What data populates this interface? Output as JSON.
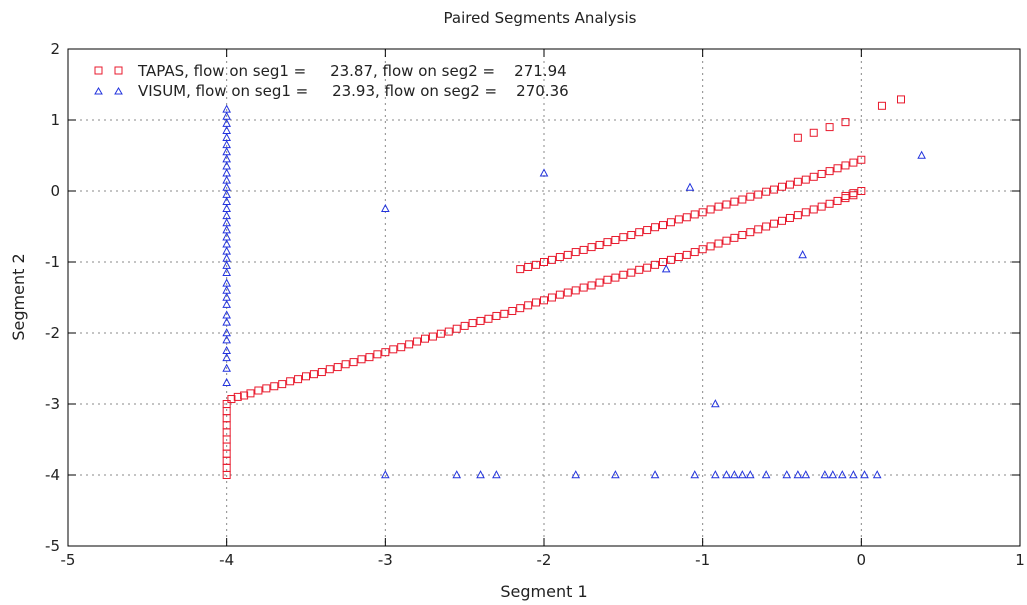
{
  "chart_data": {
    "type": "scatter",
    "title": "Paired Segments Analysis",
    "xlabel": "Segment 1",
    "ylabel": "Segment 2",
    "xlim": [
      -5,
      1
    ],
    "ylim": [
      -5,
      2
    ],
    "x_ticks": [
      -5,
      -4,
      -3,
      -2,
      -1,
      0,
      1
    ],
    "y_ticks": [
      -5,
      -4,
      -3,
      -2,
      -1,
      0,
      1,
      2
    ],
    "grid": true,
    "legend_position": "top-left",
    "series": [
      {
        "name": "TAPAS, flow on seg1 =     23.87, flow on seg2 =    271.94",
        "marker": "square",
        "color": "#e8192c",
        "points": [
          [
            -4,
            -4.0
          ],
          [
            -4,
            -3.9
          ],
          [
            -4,
            -3.8
          ],
          [
            -4,
            -3.7
          ],
          [
            -4,
            -3.6
          ],
          [
            -4,
            -3.5
          ],
          [
            -4,
            -3.4
          ],
          [
            -4,
            -3.3
          ],
          [
            -4,
            -3.2
          ],
          [
            -4,
            -3.1
          ],
          [
            -4,
            -3.0
          ],
          [
            -3.97,
            -2.93
          ],
          [
            -3.93,
            -2.9
          ],
          [
            -3.89,
            -2.88
          ],
          [
            -3.85,
            -2.85
          ],
          [
            -3.8,
            -2.81
          ],
          [
            -3.75,
            -2.78
          ],
          [
            -3.7,
            -2.75
          ],
          [
            -3.65,
            -2.72
          ],
          [
            -3.6,
            -2.68
          ],
          [
            -3.55,
            -2.65
          ],
          [
            -3.5,
            -2.61
          ],
          [
            -3.45,
            -2.58
          ],
          [
            -3.4,
            -2.55
          ],
          [
            -3.35,
            -2.51
          ],
          [
            -3.3,
            -2.48
          ],
          [
            -3.25,
            -2.44
          ],
          [
            -3.2,
            -2.41
          ],
          [
            -3.15,
            -2.37
          ],
          [
            -3.1,
            -2.34
          ],
          [
            -3.05,
            -2.3
          ],
          [
            -3.0,
            -2.27
          ],
          [
            -2.95,
            -2.23
          ],
          [
            -2.9,
            -2.2
          ],
          [
            -2.85,
            -2.16
          ],
          [
            -2.8,
            -2.12
          ],
          [
            -2.75,
            -2.08
          ],
          [
            -2.7,
            -2.05
          ],
          [
            -2.65,
            -2.01
          ],
          [
            -2.6,
            -1.98
          ],
          [
            -2.55,
            -1.94
          ],
          [
            -2.5,
            -1.9
          ],
          [
            -2.45,
            -1.86
          ],
          [
            -2.4,
            -1.83
          ],
          [
            -2.35,
            -1.8
          ],
          [
            -2.3,
            -1.76
          ],
          [
            -2.25,
            -1.73
          ],
          [
            -2.2,
            -1.69
          ],
          [
            -2.15,
            -1.65
          ],
          [
            -2.1,
            -1.61
          ],
          [
            -2.05,
            -1.57
          ],
          [
            -2.0,
            -1.54
          ],
          [
            -1.95,
            -1.5
          ],
          [
            -1.9,
            -1.46
          ],
          [
            -1.85,
            -1.43
          ],
          [
            -1.8,
            -1.4
          ],
          [
            -1.75,
            -1.36
          ],
          [
            -1.7,
            -1.33
          ],
          [
            -1.65,
            -1.29
          ],
          [
            -1.6,
            -1.25
          ],
          [
            -1.55,
            -1.22
          ],
          [
            -1.5,
            -1.18
          ],
          [
            -1.45,
            -1.15
          ],
          [
            -1.4,
            -1.11
          ],
          [
            -1.35,
            -1.08
          ],
          [
            -1.3,
            -1.04
          ],
          [
            -1.25,
            -1.0
          ],
          [
            -1.2,
            -0.97
          ],
          [
            -1.15,
            -0.93
          ],
          [
            -1.1,
            -0.9
          ],
          [
            -1.05,
            -0.86
          ],
          [
            -1.0,
            -0.82
          ],
          [
            -0.95,
            -0.78
          ],
          [
            -0.9,
            -0.74
          ],
          [
            -0.85,
            -0.7
          ],
          [
            -0.8,
            -0.66
          ],
          [
            -0.75,
            -0.62
          ],
          [
            -0.7,
            -0.58
          ],
          [
            -0.65,
            -0.54
          ],
          [
            -0.6,
            -0.5
          ],
          [
            -0.55,
            -0.46
          ],
          [
            -0.5,
            -0.42
          ],
          [
            -0.45,
            -0.38
          ],
          [
            -0.4,
            -0.34
          ],
          [
            -0.35,
            -0.3
          ],
          [
            -0.3,
            -0.26
          ],
          [
            -0.25,
            -0.22
          ],
          [
            -0.2,
            -0.18
          ],
          [
            -0.15,
            -0.14
          ],
          [
            -0.1,
            -0.1
          ],
          [
            -0.05,
            -0.06
          ],
          [
            0.0,
            0.0
          ],
          [
            -0.05,
            -0.03
          ],
          [
            -0.1,
            -0.07
          ],
          [
            -2.15,
            -1.1
          ],
          [
            -2.1,
            -1.07
          ],
          [
            -2.05,
            -1.04
          ],
          [
            -2.0,
            -1.0
          ],
          [
            -1.95,
            -0.97
          ],
          [
            -1.9,
            -0.93
          ],
          [
            -1.85,
            -0.9
          ],
          [
            -1.8,
            -0.86
          ],
          [
            -1.75,
            -0.83
          ],
          [
            -1.7,
            -0.79
          ],
          [
            -1.65,
            -0.76
          ],
          [
            -1.6,
            -0.72
          ],
          [
            -1.55,
            -0.69
          ],
          [
            -1.5,
            -0.65
          ],
          [
            -1.45,
            -0.62
          ],
          [
            -1.4,
            -0.58
          ],
          [
            -1.35,
            -0.55
          ],
          [
            -1.3,
            -0.51
          ],
          [
            -1.25,
            -0.48
          ],
          [
            -1.2,
            -0.44
          ],
          [
            -1.15,
            -0.4
          ],
          [
            -1.1,
            -0.37
          ],
          [
            -1.05,
            -0.33
          ],
          [
            -1.0,
            -0.3
          ],
          [
            -0.95,
            -0.26
          ],
          [
            -0.9,
            -0.22
          ],
          [
            -0.85,
            -0.19
          ],
          [
            -0.8,
            -0.15
          ],
          [
            -0.75,
            -0.12
          ],
          [
            -0.7,
            -0.08
          ],
          [
            -0.65,
            -0.05
          ],
          [
            -0.6,
            -0.01
          ],
          [
            -0.55,
            0.02
          ],
          [
            -0.5,
            0.06
          ],
          [
            -0.45,
            0.09
          ],
          [
            -0.4,
            0.13
          ],
          [
            -0.35,
            0.16
          ],
          [
            -0.3,
            0.2
          ],
          [
            -0.25,
            0.24
          ],
          [
            -0.2,
            0.28
          ],
          [
            -0.15,
            0.32
          ],
          [
            -0.1,
            0.36
          ],
          [
            -0.05,
            0.4
          ],
          [
            0.0,
            0.44
          ],
          [
            0.13,
            1.2
          ],
          [
            0.25,
            1.29
          ],
          [
            -0.1,
            0.97
          ],
          [
            -0.2,
            0.9
          ],
          [
            -0.3,
            0.82
          ],
          [
            -0.4,
            0.75
          ]
        ]
      },
      {
        "name": "VISUM, flow on seg1 =     23.93, flow on seg2 =    270.36",
        "marker": "triangle",
        "color": "#2233dd",
        "points": [
          [
            -4,
            1.15
          ],
          [
            -4,
            1.05
          ],
          [
            -4,
            0.95
          ],
          [
            -4,
            0.85
          ],
          [
            -4,
            0.75
          ],
          [
            -4,
            0.65
          ],
          [
            -4,
            0.55
          ],
          [
            -4,
            0.45
          ],
          [
            -4,
            0.35
          ],
          [
            -4,
            0.25
          ],
          [
            -4,
            0.15
          ],
          [
            -4,
            0.05
          ],
          [
            -4,
            -0.05
          ],
          [
            -4,
            -0.15
          ],
          [
            -4,
            -0.25
          ],
          [
            -4,
            -0.35
          ],
          [
            -4,
            -0.45
          ],
          [
            -4,
            -0.55
          ],
          [
            -4,
            -0.65
          ],
          [
            -4,
            -0.75
          ],
          [
            -4,
            -0.85
          ],
          [
            -4,
            -0.95
          ],
          [
            -4,
            -1.05
          ],
          [
            -4,
            -1.15
          ],
          [
            -4,
            -1.3
          ],
          [
            -4,
            -1.4
          ],
          [
            -4,
            -1.5
          ],
          [
            -4,
            -1.6
          ],
          [
            -4,
            -1.75
          ],
          [
            -4,
            -1.85
          ],
          [
            -4,
            -2.0
          ],
          [
            -4,
            -2.1
          ],
          [
            -4,
            -2.25
          ],
          [
            -4,
            -2.35
          ],
          [
            -4,
            -2.5
          ],
          [
            -4,
            -2.7
          ],
          [
            -3.0,
            -0.25
          ],
          [
            -2.0,
            0.25
          ],
          [
            -1.23,
            -1.1
          ],
          [
            -1.08,
            0.05
          ],
          [
            -0.92,
            -3.0
          ],
          [
            -0.37,
            -0.9
          ],
          [
            0.38,
            0.5
          ],
          [
            -3.0,
            -4.0
          ],
          [
            -2.55,
            -4.0
          ],
          [
            -2.4,
            -4.0
          ],
          [
            -2.3,
            -4.0
          ],
          [
            -1.8,
            -4.0
          ],
          [
            -1.55,
            -4.0
          ],
          [
            -1.3,
            -4.0
          ],
          [
            -1.05,
            -4.0
          ],
          [
            -0.92,
            -4.0
          ],
          [
            -0.85,
            -4.0
          ],
          [
            -0.8,
            -4.0
          ],
          [
            -0.75,
            -4.0
          ],
          [
            -0.7,
            -4.0
          ],
          [
            -0.6,
            -4.0
          ],
          [
            -0.47,
            -4.0
          ],
          [
            -0.4,
            -4.0
          ],
          [
            -0.35,
            -4.0
          ],
          [
            -0.23,
            -4.0
          ],
          [
            -0.18,
            -4.0
          ],
          [
            -0.12,
            -4.0
          ],
          [
            -0.05,
            -4.0
          ],
          [
            0.02,
            -4.0
          ],
          [
            0.1,
            -4.0
          ]
        ]
      }
    ]
  }
}
